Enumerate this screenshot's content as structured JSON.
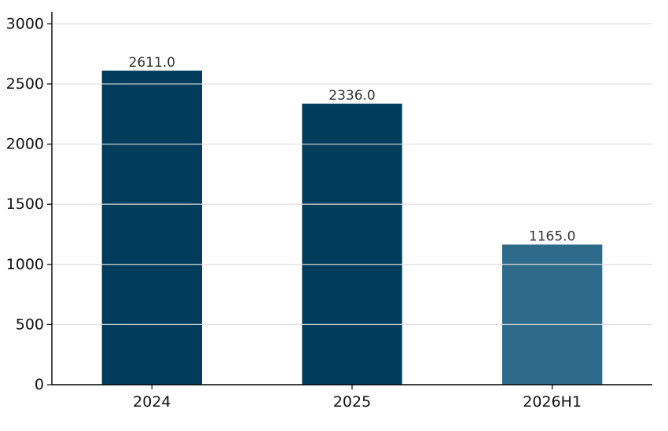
{
  "chart_data": {
    "type": "bar",
    "title": "",
    "xlabel": "",
    "ylabel": "",
    "categories": [
      "2024",
      "2025",
      "2026H1"
    ],
    "values": [
      2611.0,
      2336.0,
      1165.0
    ],
    "value_labels": [
      "2611.0",
      "2336.0",
      "1165.0"
    ],
    "ylim": [
      0,
      3100
    ],
    "yticks": [
      0,
      500,
      1000,
      1500,
      2000,
      2500,
      3000
    ],
    "ytick_labels": [
      "0",
      "500",
      "1000",
      "1500",
      "2000",
      "2500",
      "3000"
    ],
    "grid": true,
    "legend": "none",
    "colors": [
      "#003d5c",
      "#003d5c",
      "#2e6a8a"
    ],
    "grid_color": "#dddddd",
    "axis_color": "#000000"
  }
}
